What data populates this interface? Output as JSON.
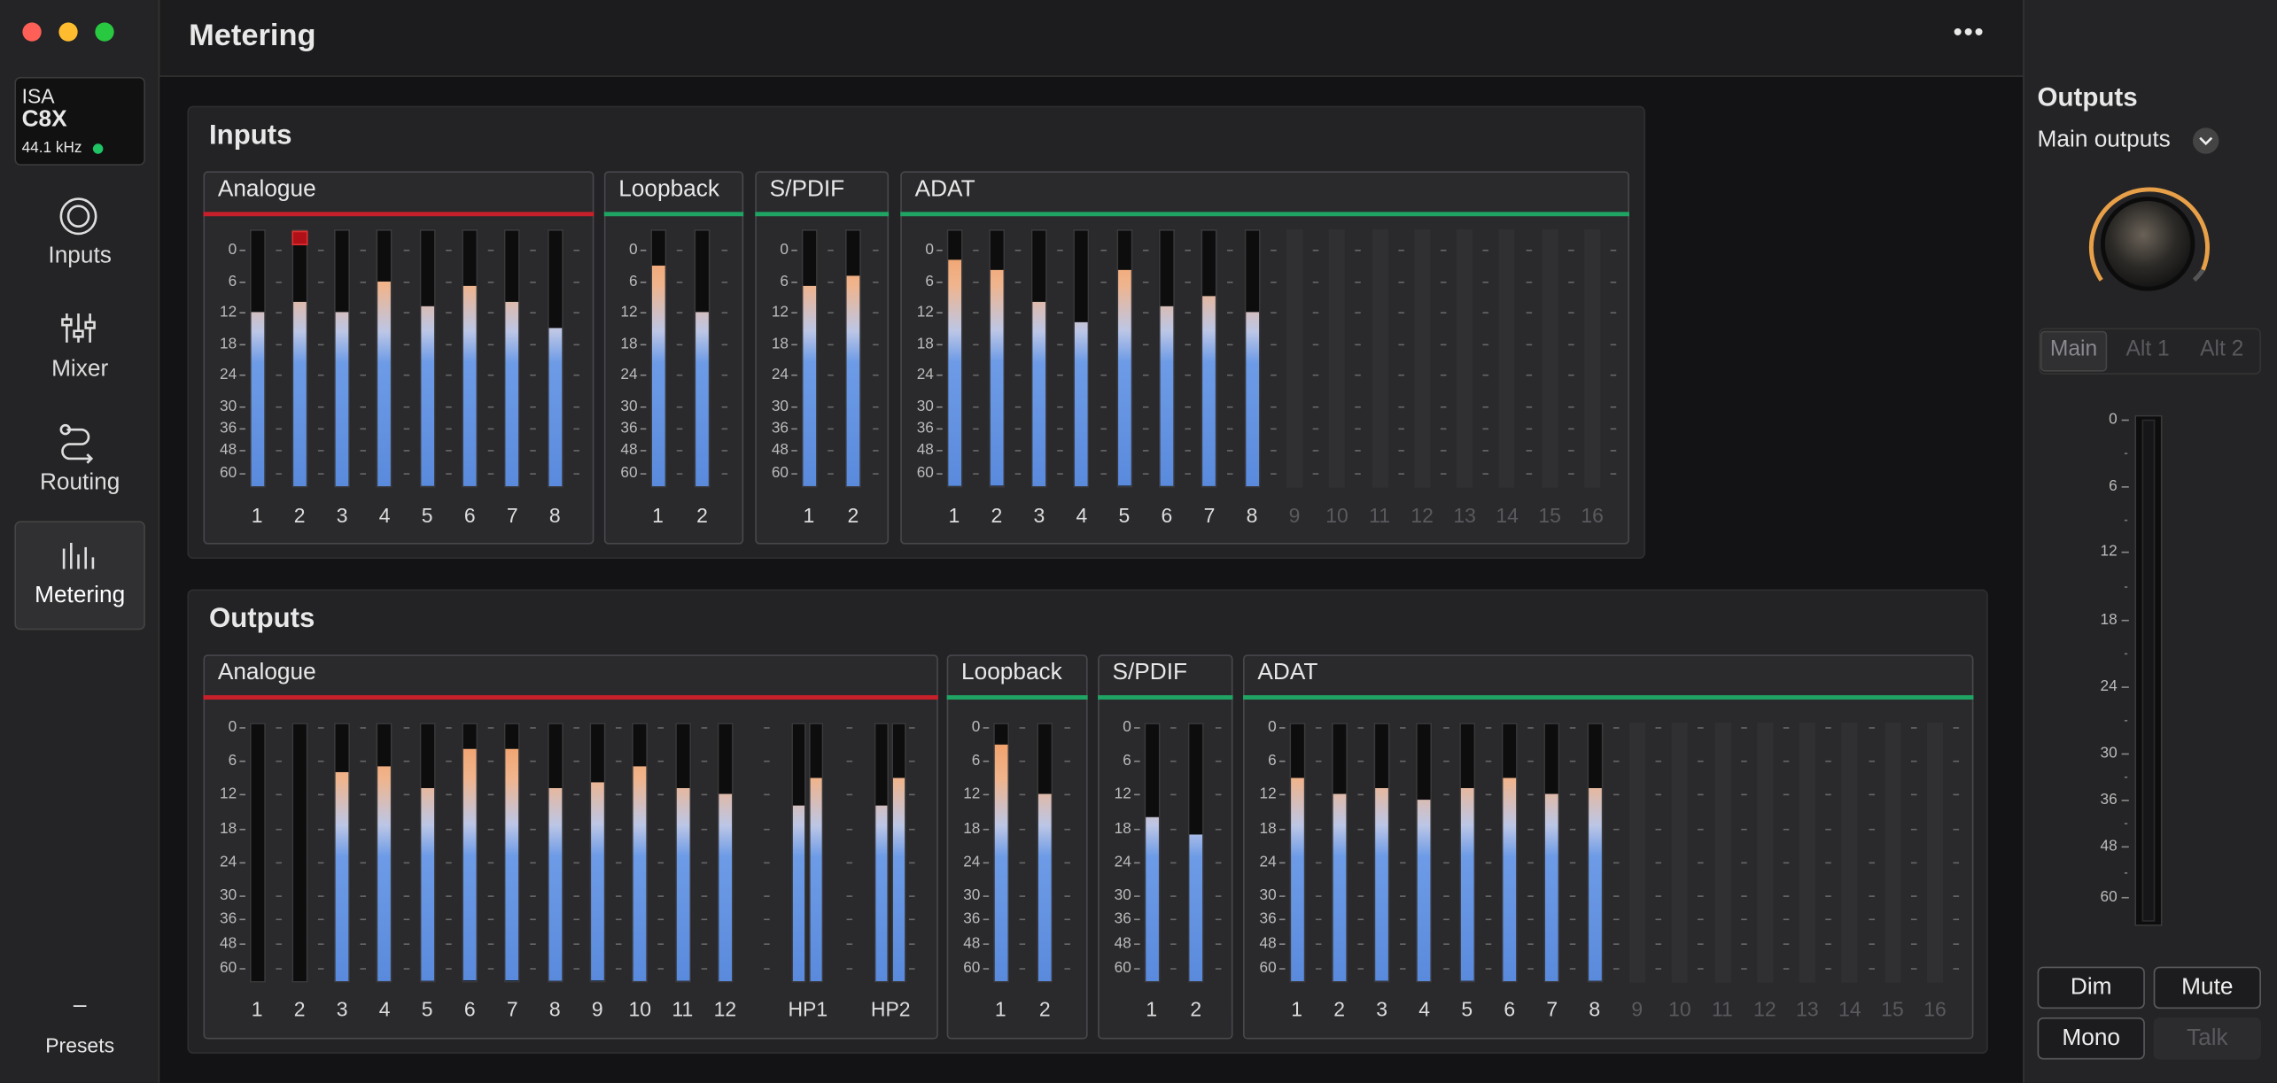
{
  "sidebar": {
    "device": {
      "brand": "ISA",
      "model": "C8X",
      "rate": "44.1 kHz"
    },
    "nav": [
      {
        "label": "Inputs"
      },
      {
        "label": "Mixer"
      },
      {
        "label": "Routing"
      },
      {
        "label": "Metering",
        "active": true
      }
    ],
    "presets": "Presets"
  },
  "header": {
    "title": "Metering"
  },
  "scale": [
    0,
    6,
    12,
    18,
    24,
    30,
    36,
    48,
    60
  ],
  "sections": [
    {
      "title": "Inputs",
      "groups": [
        {
          "name": "Analogue",
          "color": "#c8202a",
          "channels": [
            {
              "label": "1",
              "level": 12
            },
            {
              "label": "2",
              "level": 10,
              "clip": true
            },
            {
              "label": "3",
              "level": 12
            },
            {
              "label": "4",
              "level": 6
            },
            {
              "label": "5",
              "level": 11
            },
            {
              "label": "6",
              "level": 7
            },
            {
              "label": "7",
              "level": 10
            },
            {
              "label": "8",
              "level": 15
            }
          ]
        },
        {
          "name": "Loopback",
          "color": "#1fa463",
          "channels": [
            {
              "label": "1",
              "level": 3
            },
            {
              "label": "2",
              "level": 12
            }
          ]
        },
        {
          "name": "S/PDIF",
          "color": "#1fa463",
          "channels": [
            {
              "label": "1",
              "level": 7
            },
            {
              "label": "2",
              "level": 5
            }
          ]
        },
        {
          "name": "ADAT",
          "color": "#1fa463",
          "channels": [
            {
              "label": "1",
              "level": 2
            },
            {
              "label": "2",
              "level": 4
            },
            {
              "label": "3",
              "level": 10
            },
            {
              "label": "4",
              "level": 14
            },
            {
              "label": "5",
              "level": 4
            },
            {
              "label": "6",
              "level": 11
            },
            {
              "label": "7",
              "level": 9
            },
            {
              "label": "8",
              "level": 12
            },
            {
              "label": "9",
              "level": null,
              "enabled": false
            },
            {
              "label": "10",
              "level": null,
              "enabled": false
            },
            {
              "label": "11",
              "level": null,
              "enabled": false
            },
            {
              "label": "12",
              "level": null,
              "enabled": false
            },
            {
              "label": "13",
              "level": null,
              "enabled": false
            },
            {
              "label": "14",
              "level": null,
              "enabled": false
            },
            {
              "label": "15",
              "level": null,
              "enabled": false
            },
            {
              "label": "16",
              "level": null,
              "enabled": false
            }
          ]
        }
      ]
    },
    {
      "title": "Outputs",
      "groups": [
        {
          "name": "Analogue",
          "color": "#c8202a",
          "channels": [
            {
              "label": "1",
              "level": null
            },
            {
              "label": "2",
              "level": null
            },
            {
              "label": "3",
              "level": 8
            },
            {
              "label": "4",
              "level": 7
            },
            {
              "label": "5",
              "level": 11
            },
            {
              "label": "6",
              "level": 4
            },
            {
              "label": "7",
              "level": 4
            },
            {
              "label": "8",
              "level": 11
            },
            {
              "label": "9",
              "level": 10
            },
            {
              "label": "10",
              "level": 7
            },
            {
              "label": "11",
              "level": 11
            },
            {
              "label": "12",
              "level": 12
            },
            {
              "label": "HP1",
              "level": [
                14,
                9
              ]
            },
            {
              "label": "HP2",
              "level": [
                14,
                9
              ]
            }
          ]
        },
        {
          "name": "Loopback",
          "color": "#1fa463",
          "channels": [
            {
              "label": "1",
              "level": 3
            },
            {
              "label": "2",
              "level": 12
            }
          ]
        },
        {
          "name": "S/PDIF",
          "color": "#1fa463",
          "channels": [
            {
              "label": "1",
              "level": 16
            },
            {
              "label": "2",
              "level": 19
            }
          ]
        },
        {
          "name": "ADAT",
          "color": "#1fa463",
          "channels": [
            {
              "label": "1",
              "level": 9
            },
            {
              "label": "2",
              "level": 12
            },
            {
              "label": "3",
              "level": 11
            },
            {
              "label": "4",
              "level": 13
            },
            {
              "label": "5",
              "level": 11
            },
            {
              "label": "6",
              "level": 9
            },
            {
              "label": "7",
              "level": 12
            },
            {
              "label": "8",
              "level": 11
            },
            {
              "label": "9",
              "level": null,
              "enabled": false
            },
            {
              "label": "10",
              "level": null,
              "enabled": false
            },
            {
              "label": "11",
              "level": null,
              "enabled": false
            },
            {
              "label": "12",
              "level": null,
              "enabled": false
            },
            {
              "label": "13",
              "level": null,
              "enabled": false
            },
            {
              "label": "14",
              "level": null,
              "enabled": false
            },
            {
              "label": "15",
              "level": null,
              "enabled": false
            },
            {
              "label": "16",
              "level": null,
              "enabled": false
            }
          ]
        }
      ]
    }
  ],
  "output_panel": {
    "title": "Outputs",
    "selector": "Main outputs",
    "tabs": [
      {
        "label": "Main",
        "active": true
      },
      {
        "label": "Alt 1"
      },
      {
        "label": "Alt 2"
      }
    ],
    "buttons": [
      {
        "label": "Dim"
      },
      {
        "label": "Mute"
      },
      {
        "label": "Mono"
      },
      {
        "label": "Talk",
        "enabled": false
      }
    ]
  }
}
